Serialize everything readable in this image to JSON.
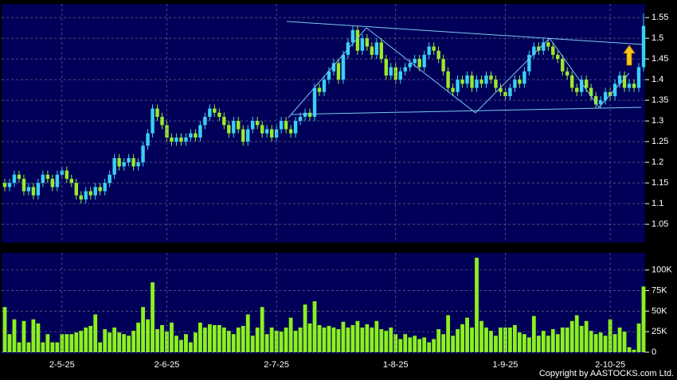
{
  "chart_data": [
    {
      "type": "candlestick",
      "up_color": "#3ad0f5",
      "down_color": "#9be82c",
      "ylim": [
        1.006,
        1.583
      ],
      "yticks": [
        1.05,
        1.1,
        1.15,
        1.2,
        1.25,
        1.3,
        1.35,
        1.4,
        1.45,
        1.5,
        1.55
      ],
      "grid": true,
      "open": [
        1.15,
        1.14,
        1.15,
        1.17,
        1.16,
        1.13,
        1.14,
        1.12,
        1.15,
        1.17,
        1.16,
        1.14,
        1.17,
        1.18,
        1.16,
        1.15,
        1.12,
        1.11,
        1.13,
        1.12,
        1.14,
        1.13,
        1.15,
        1.17,
        1.21,
        1.19,
        1.2,
        1.21,
        1.19,
        1.2,
        1.24,
        1.27,
        1.33,
        1.31,
        1.29,
        1.26,
        1.25,
        1.26,
        1.25,
        1.26,
        1.27,
        1.26,
        1.29,
        1.31,
        1.33,
        1.32,
        1.31,
        1.29,
        1.27,
        1.3,
        1.28,
        1.25,
        1.28,
        1.3,
        1.29,
        1.27,
        1.28,
        1.26,
        1.28,
        1.3,
        1.28,
        1.27,
        1.3,
        1.31,
        1.32,
        1.31,
        1.38,
        1.37,
        1.4,
        1.42,
        1.44,
        1.4,
        1.46,
        1.49,
        1.52,
        1.47,
        1.5,
        1.48,
        1.46,
        1.49,
        1.45,
        1.41,
        1.43,
        1.4,
        1.42,
        1.43,
        1.44,
        1.45,
        1.43,
        1.46,
        1.48,
        1.47,
        1.45,
        1.42,
        1.38,
        1.37,
        1.4,
        1.39,
        1.41,
        1.38,
        1.4,
        1.39,
        1.41,
        1.4,
        1.38,
        1.37,
        1.36,
        1.38,
        1.4,
        1.39,
        1.42,
        1.46,
        1.48,
        1.47,
        1.49,
        1.48,
        1.46,
        1.45,
        1.42,
        1.41,
        1.38,
        1.37,
        1.4,
        1.38,
        1.36,
        1.34,
        1.35,
        1.37,
        1.36,
        1.39,
        1.41,
        1.38,
        1.39,
        1.38,
        1.43
      ],
      "high": [
        1.16,
        1.16,
        1.18,
        1.18,
        1.17,
        1.15,
        1.15,
        1.16,
        1.18,
        1.18,
        1.17,
        1.18,
        1.19,
        1.19,
        1.17,
        1.16,
        1.13,
        1.14,
        1.14,
        1.15,
        1.15,
        1.16,
        1.18,
        1.22,
        1.22,
        1.21,
        1.22,
        1.22,
        1.21,
        1.25,
        1.28,
        1.34,
        1.34,
        1.32,
        1.3,
        1.27,
        1.27,
        1.27,
        1.27,
        1.28,
        1.28,
        1.3,
        1.32,
        1.34,
        1.34,
        1.33,
        1.32,
        1.3,
        1.31,
        1.31,
        1.29,
        1.29,
        1.31,
        1.31,
        1.3,
        1.29,
        1.29,
        1.29,
        1.31,
        1.31,
        1.29,
        1.31,
        1.32,
        1.33,
        1.33,
        1.39,
        1.39,
        1.41,
        1.43,
        1.45,
        1.45,
        1.47,
        1.5,
        1.53,
        1.53,
        1.51,
        1.51,
        1.49,
        1.5,
        1.5,
        1.46,
        1.44,
        1.44,
        1.43,
        1.44,
        1.45,
        1.46,
        1.46,
        1.47,
        1.49,
        1.49,
        1.48,
        1.46,
        1.43,
        1.39,
        1.41,
        1.41,
        1.42,
        1.42,
        1.41,
        1.41,
        1.42,
        1.42,
        1.41,
        1.39,
        1.38,
        1.39,
        1.41,
        1.41,
        1.43,
        1.47,
        1.49,
        1.49,
        1.5,
        1.5,
        1.49,
        1.47,
        1.46,
        1.43,
        1.42,
        1.39,
        1.41,
        1.41,
        1.39,
        1.37,
        1.36,
        1.38,
        1.38,
        1.4,
        1.42,
        1.42,
        1.4,
        1.4,
        1.44,
        1.56
      ],
      "low": [
        1.13,
        1.13,
        1.14,
        1.15,
        1.12,
        1.12,
        1.11,
        1.11,
        1.14,
        1.15,
        1.13,
        1.13,
        1.16,
        1.15,
        1.14,
        1.11,
        1.1,
        1.1,
        1.11,
        1.11,
        1.12,
        1.12,
        1.14,
        1.16,
        1.18,
        1.18,
        1.19,
        1.18,
        1.18,
        1.19,
        1.23,
        1.26,
        1.3,
        1.28,
        1.25,
        1.24,
        1.24,
        1.24,
        1.24,
        1.25,
        1.25,
        1.25,
        1.28,
        1.3,
        1.31,
        1.3,
        1.28,
        1.26,
        1.26,
        1.27,
        1.24,
        1.24,
        1.27,
        1.28,
        1.26,
        1.26,
        1.25,
        1.25,
        1.27,
        1.27,
        1.26,
        1.26,
        1.29,
        1.3,
        1.3,
        1.3,
        1.36,
        1.36,
        1.39,
        1.41,
        1.39,
        1.39,
        1.45,
        1.48,
        1.46,
        1.46,
        1.47,
        1.45,
        1.45,
        1.44,
        1.4,
        1.4,
        1.39,
        1.39,
        1.41,
        1.42,
        1.43,
        1.42,
        1.42,
        1.45,
        1.46,
        1.44,
        1.41,
        1.37,
        1.36,
        1.36,
        1.38,
        1.38,
        1.37,
        1.37,
        1.38,
        1.38,
        1.39,
        1.37,
        1.36,
        1.35,
        1.35,
        1.37,
        1.38,
        1.38,
        1.41,
        1.45,
        1.46,
        1.46,
        1.47,
        1.45,
        1.44,
        1.41,
        1.4,
        1.37,
        1.36,
        1.36,
        1.37,
        1.35,
        1.33,
        1.33,
        1.34,
        1.35,
        1.35,
        1.38,
        1.37,
        1.37,
        1.37,
        1.37,
        1.42
      ],
      "close": [
        1.14,
        1.15,
        1.17,
        1.16,
        1.13,
        1.14,
        1.12,
        1.15,
        1.17,
        1.16,
        1.14,
        1.17,
        1.18,
        1.16,
        1.15,
        1.12,
        1.11,
        1.13,
        1.12,
        1.14,
        1.13,
        1.15,
        1.17,
        1.21,
        1.19,
        1.2,
        1.21,
        1.19,
        1.2,
        1.24,
        1.27,
        1.33,
        1.31,
        1.29,
        1.26,
        1.25,
        1.26,
        1.25,
        1.26,
        1.27,
        1.26,
        1.29,
        1.31,
        1.33,
        1.32,
        1.31,
        1.29,
        1.27,
        1.3,
        1.28,
        1.25,
        1.28,
        1.3,
        1.29,
        1.27,
        1.28,
        1.26,
        1.28,
        1.3,
        1.28,
        1.27,
        1.3,
        1.31,
        1.32,
        1.31,
        1.38,
        1.37,
        1.4,
        1.42,
        1.44,
        1.4,
        1.46,
        1.49,
        1.52,
        1.47,
        1.5,
        1.48,
        1.46,
        1.49,
        1.45,
        1.41,
        1.43,
        1.4,
        1.42,
        1.43,
        1.44,
        1.45,
        1.43,
        1.46,
        1.48,
        1.47,
        1.45,
        1.42,
        1.38,
        1.37,
        1.4,
        1.39,
        1.41,
        1.38,
        1.4,
        1.39,
        1.41,
        1.4,
        1.38,
        1.37,
        1.36,
        1.38,
        1.4,
        1.39,
        1.42,
        1.46,
        1.48,
        1.47,
        1.49,
        1.48,
        1.46,
        1.45,
        1.42,
        1.41,
        1.38,
        1.37,
        1.4,
        1.38,
        1.36,
        1.34,
        1.35,
        1.37,
        1.36,
        1.39,
        1.41,
        1.38,
        1.39,
        1.38,
        1.43,
        1.53
      ]
    },
    {
      "type": "bar",
      "color": "#8cf01e",
      "ylim": [
        0,
        121000
      ],
      "yticks": [
        0,
        {
          "value": 25000,
          "label": "25K"
        },
        {
          "value": 50000,
          "label": "50K"
        },
        {
          "value": 75000,
          "label": "75K"
        },
        {
          "value": 100000,
          "label": "100K"
        }
      ],
      "grid": true,
      "categories": [
        null,
        null,
        null,
        null,
        null,
        null,
        null,
        null,
        null,
        null,
        null,
        null,
        "2-5-25",
        null,
        null,
        null,
        null,
        null,
        null,
        null,
        null,
        null,
        null,
        null,
        null,
        null,
        null,
        null,
        null,
        null,
        null,
        null,
        null,
        null,
        "2-6-25",
        null,
        null,
        null,
        null,
        null,
        null,
        null,
        null,
        null,
        null,
        null,
        null,
        null,
        null,
        null,
        null,
        null,
        null,
        null,
        null,
        null,
        null,
        "2-7-25",
        null,
        null,
        null,
        null,
        null,
        null,
        null,
        null,
        null,
        null,
        null,
        null,
        null,
        null,
        null,
        null,
        null,
        null,
        null,
        null,
        null,
        null,
        null,
        null,
        "1-8-25",
        null,
        null,
        null,
        null,
        null,
        null,
        null,
        null,
        null,
        null,
        null,
        null,
        null,
        null,
        null,
        null,
        null,
        null,
        null,
        null,
        null,
        null,
        "1-9-25",
        null,
        null,
        null,
        null,
        null,
        null,
        null,
        null,
        null,
        null,
        null,
        null,
        null,
        null,
        null,
        null,
        null,
        null,
        null,
        null,
        null,
        "2-10-25",
        null,
        null,
        null,
        null,
        null,
        null,
        null
      ],
      "values": [
        55000,
        22000,
        40000,
        12000,
        38000,
        12000,
        40000,
        35000,
        12000,
        22000,
        12000,
        12000,
        22000,
        22000,
        22000,
        24000,
        26000,
        30000,
        32000,
        46000,
        12000,
        28000,
        24000,
        30000,
        24000,
        22000,
        20000,
        26000,
        36000,
        55000,
        40000,
        85000,
        28000,
        33000,
        25000,
        36000,
        20000,
        15000,
        22000,
        12000,
        24000,
        36000,
        30000,
        34000,
        33000,
        33000,
        30000,
        26000,
        22000,
        30000,
        32000,
        46000,
        20000,
        30000,
        55000,
        22000,
        30000,
        26000,
        25000,
        30000,
        42000,
        26000,
        30000,
        58000,
        35000,
        62000,
        33000,
        30000,
        32000,
        30000,
        28000,
        37000,
        30000,
        33000,
        38000,
        30000,
        34000,
        30000,
        38000,
        28000,
        26000,
        30000,
        22000,
        16000,
        22000,
        18000,
        20000,
        16000,
        18000,
        12000,
        16000,
        28000,
        22000,
        45000,
        20000,
        28000,
        34000,
        42000,
        30000,
        115000,
        38000,
        30000,
        26000,
        20000,
        30000,
        30000,
        30000,
        33000,
        24000,
        22000,
        18000,
        44000,
        20000,
        26000,
        20000,
        28000,
        22000,
        30000,
        30000,
        38000,
        45000,
        32000,
        38000,
        26000,
        22000,
        24000,
        20000,
        40000,
        22000,
        30000,
        25000,
        6000,
        3000,
        35000,
        80000
      ]
    }
  ],
  "copyright": "Copyright by AASTOCKS.com Ltd."
}
